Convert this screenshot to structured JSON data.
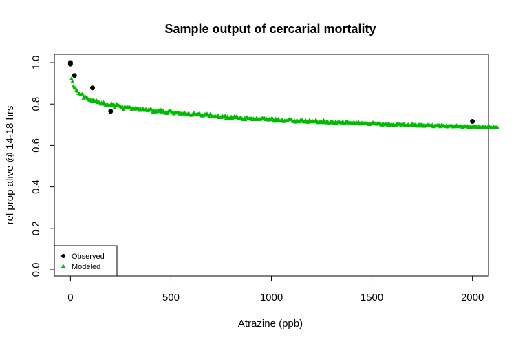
{
  "chart_data": {
    "type": "scatter",
    "title": "Sample output of cercarial mortality",
    "xlabel": "Atrazine (ppb)",
    "ylabel": "rel prop alive @ 14-18 hrs",
    "xlim": [
      -80,
      2080
    ],
    "ylim": [
      -0.03,
      1.04
    ],
    "x_ticks": [
      0,
      500,
      1000,
      1500,
      2000
    ],
    "y_ticks": [
      0.0,
      0.2,
      0.4,
      0.6,
      0.8,
      1.0
    ],
    "x_tick_labels": [
      "0",
      "500",
      "1000",
      "1500",
      "2000"
    ],
    "y_tick_labels": [
      "0.0",
      "0.2",
      "0.4",
      "0.6",
      "0.8",
      "1.0"
    ],
    "grid": false,
    "legend": {
      "position": "bottom-left",
      "entries": [
        "Observed",
        "Modeled"
      ]
    },
    "series": [
      {
        "name": "Observed",
        "marker": "circle",
        "color": "#000000",
        "points": [
          [
            0,
            1.0
          ],
          [
            0,
            0.993
          ],
          [
            20,
            0.938
          ],
          [
            110,
            0.878
          ],
          [
            200,
            0.765
          ],
          [
            2000,
            0.716
          ]
        ]
      },
      {
        "name": "Modeled",
        "marker": "triangle",
        "color": "#00bb00",
        "x_start": 0,
        "x_step": 5,
        "points_y": [
          0.995,
          0.922,
          0.909,
          0.886,
          0.879,
          0.876,
          0.867,
          0.862,
          0.851,
          0.851,
          0.846,
          0.845,
          0.849,
          0.829,
          0.833,
          0.834,
          0.832,
          0.827,
          0.822,
          0.818,
          0.82,
          0.813,
          0.818,
          0.82,
          0.814,
          0.813,
          0.817,
          0.808,
          0.808,
          0.807,
          0.8,
          0.806,
          0.802,
          0.808,
          0.799,
          0.795,
          0.797,
          0.796,
          0.793,
          0.791,
          0.796,
          0.802,
          0.794,
          0.8,
          0.785,
          0.793,
          0.801,
          0.797,
          0.792,
          0.791,
          0.788,
          0.781,
          0.785,
          0.774,
          0.787,
          0.783,
          0.784,
          0.784,
          0.784,
          0.784,
          0.782,
          0.775,
          0.78,
          0.776,
          0.776,
          0.782,
          0.776,
          0.778,
          0.777,
          0.77,
          0.775,
          0.772,
          0.778,
          0.774,
          0.77,
          0.775,
          0.773,
          0.768,
          0.775,
          0.772,
          0.778,
          0.77,
          0.761,
          0.768,
          0.76,
          0.769,
          0.763,
          0.768,
          0.77,
          0.764,
          0.772,
          0.762,
          0.769,
          0.763,
          0.757,
          0.762,
          0.755,
          0.76,
          0.766,
          0.768,
          0.766,
          0.76,
          0.758,
          0.753,
          0.761,
          0.759,
          0.757,
          0.758,
          0.757,
          0.752,
          0.755,
          0.753,
          0.753,
          0.757,
          0.757,
          0.752,
          0.749,
          0.754,
          0.753,
          0.746,
          0.747,
          0.746,
          0.754,
          0.757,
          0.752,
          0.749,
          0.751,
          0.752,
          0.753,
          0.751,
          0.743,
          0.749,
          0.743,
          0.747,
          0.751,
          0.747,
          0.753,
          0.746,
          0.739,
          0.751,
          0.747,
          0.74,
          0.74,
          0.738,
          0.743,
          0.739,
          0.739,
          0.745,
          0.735,
          0.735,
          0.735,
          0.745,
          0.737,
          0.741,
          0.743,
          0.731,
          0.739,
          0.734,
          0.729,
          0.734,
          0.739,
          0.73,
          0.735,
          0.74,
          0.734,
          0.74,
          0.738,
          0.729,
          0.729,
          0.734,
          0.734,
          0.728,
          0.725,
          0.732,
          0.724,
          0.738,
          0.734,
          0.73,
          0.729,
          0.732,
          0.73,
          0.725,
          0.73,
          0.725,
          0.725,
          0.731,
          0.728,
          0.725,
          0.729,
          0.726,
          0.73,
          0.732,
          0.73,
          0.732,
          0.725,
          0.729,
          0.725,
          0.723,
          0.727,
          0.724,
          0.729,
          0.73,
          0.722,
          0.717,
          0.729,
          0.723,
          0.72,
          0.728,
          0.719,
          0.718,
          0.721,
          0.724,
          0.716,
          0.719,
          0.718,
          0.72,
          0.719,
          0.724,
          0.726,
          0.726,
          0.725,
          0.718,
          0.715,
          0.719,
          0.713,
          0.719,
          0.718,
          0.715,
          0.714,
          0.723,
          0.722,
          0.721,
          0.714,
          0.714,
          0.722,
          0.715,
          0.712,
          0.716,
          0.723,
          0.716,
          0.714,
          0.717,
          0.716,
          0.714,
          0.721,
          0.718,
          0.711,
          0.711,
          0.714,
          0.713,
          0.713,
          0.711,
          0.721,
          0.716,
          0.71,
          0.715,
          0.714,
          0.707,
          0.709,
          0.713,
          0.714,
          0.713,
          0.709,
          0.708,
          0.716,
          0.708,
          0.712,
          0.712,
          0.712,
          0.71,
          0.709,
          0.716,
          0.706,
          0.708,
          0.715,
          0.712,
          0.713,
          0.709,
          0.711,
          0.707,
          0.71,
          0.707,
          0.712,
          0.708,
          0.706,
          0.71,
          0.707,
          0.711,
          0.704,
          0.708,
          0.709,
          0.71,
          0.705,
          0.71,
          0.706,
          0.708,
          0.704,
          0.702,
          0.702,
          0.705,
          0.705,
          0.711,
          0.708,
          0.707,
          0.705,
          0.703,
          0.708,
          0.706,
          0.708,
          0.701,
          0.699,
          0.707,
          0.7,
          0.703,
          0.702,
          0.705,
          0.699,
          0.707,
          0.698,
          0.7,
          0.7,
          0.7,
          0.698,
          0.697,
          0.699,
          0.705,
          0.703,
          0.703,
          0.702,
          0.699,
          0.703,
          0.701,
          0.705,
          0.698,
          0.695,
          0.699,
          0.701,
          0.697,
          0.695,
          0.698,
          0.705,
          0.697,
          0.7,
          0.7,
          0.698,
          0.694,
          0.7,
          0.701,
          0.694,
          0.701,
          0.698,
          0.698,
          0.693,
          0.697,
          0.695,
          0.701,
          0.698,
          0.7,
          0.695,
          0.696,
          0.699,
          0.691,
          0.694,
          0.695,
          0.695,
          0.697,
          0.697,
          0.697,
          0.691,
          0.697,
          0.697,
          0.696,
          0.694,
          0.692,
          0.695,
          0.69,
          0.693,
          0.694,
          0.694,
          0.696,
          0.693,
          0.69,
          0.692,
          0.691,
          0.697,
          0.693,
          0.691,
          0.693,
          0.693,
          0.693,
          0.688,
          0.69,
          0.694,
          0.692,
          0.693,
          0.693,
          0.687,
          0.688,
          0.691,
          0.688,
          0.689,
          0.69,
          0.692,
          0.691,
          0.689,
          0.685,
          0.69,
          0.69,
          0.687,
          0.686,
          0.691,
          0.691,
          0.686,
          0.69,
          0.686,
          0.688,
          0.688,
          0.691,
          0.685,
          0.686,
          0.686,
          0.691,
          0.685,
          0.688,
          0.687,
          0.686
        ]
      }
    ]
  }
}
